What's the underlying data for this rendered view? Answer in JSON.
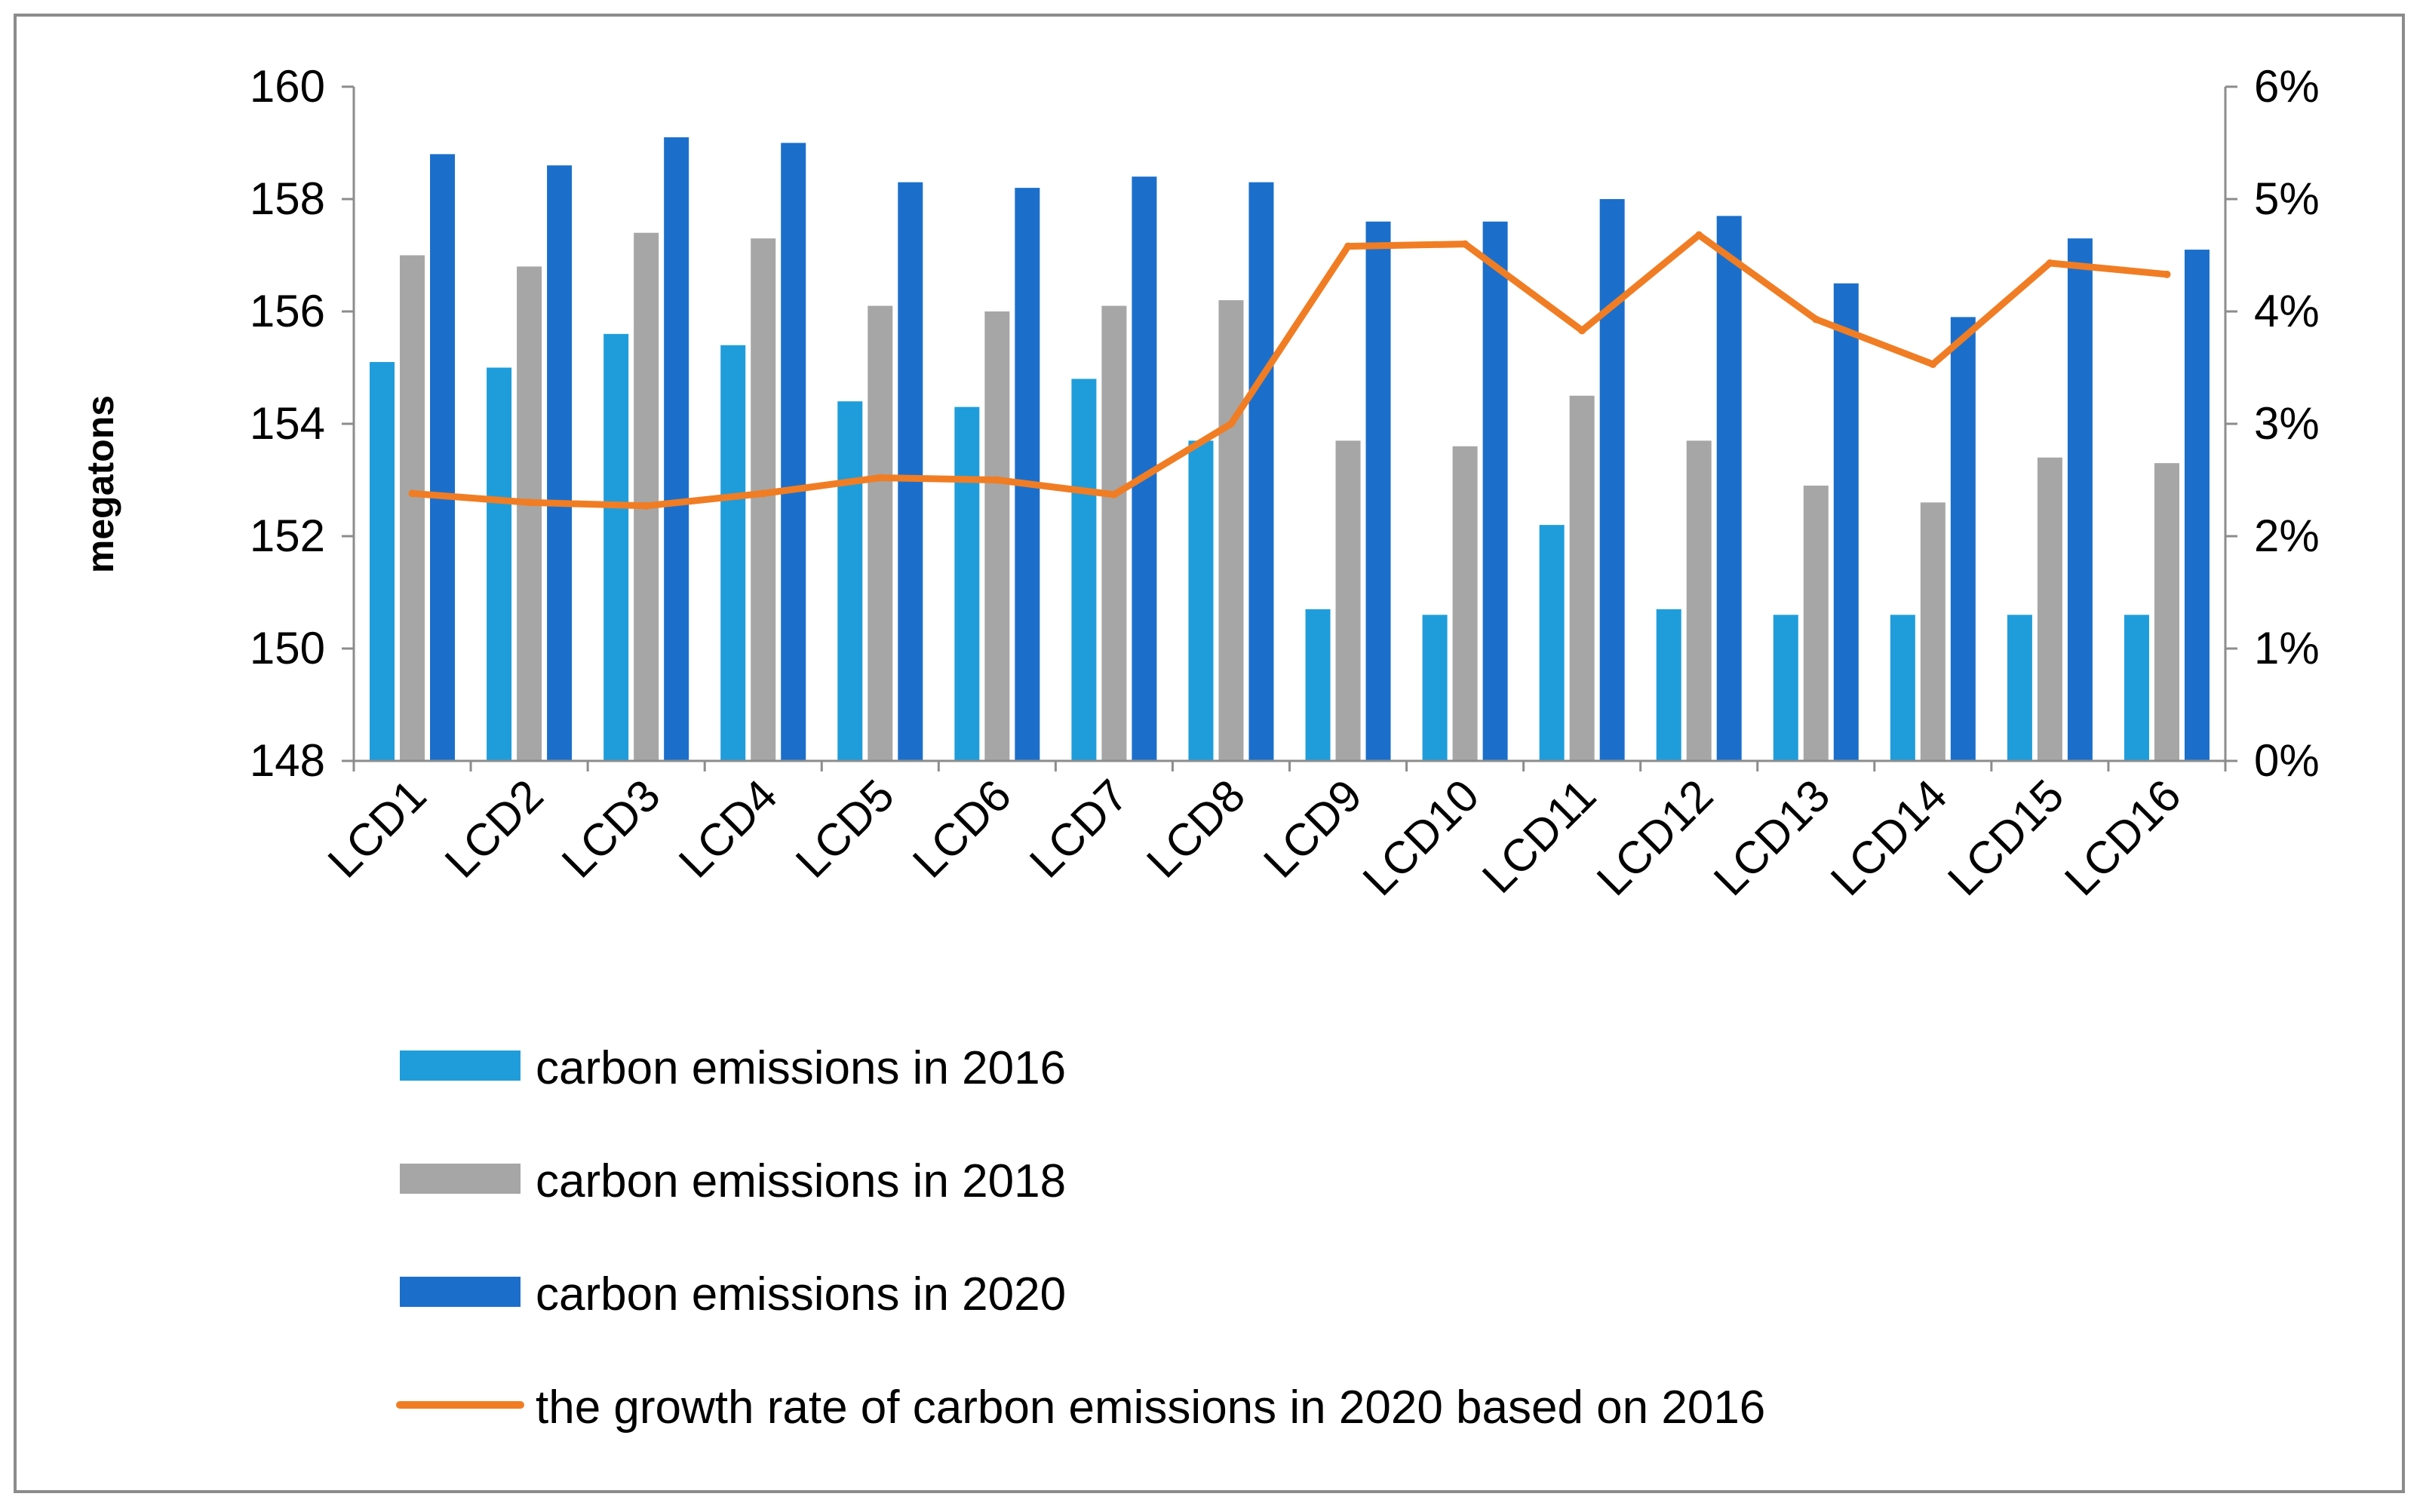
{
  "chart_data": {
    "type": "bar",
    "title": "",
    "xlabel": "",
    "ylabel": "megatons",
    "ylim": [
      148,
      160
    ],
    "yticks": [
      "148",
      "150",
      "152",
      "154",
      "156",
      "158",
      "160"
    ],
    "y2lim": [
      0,
      6
    ],
    "y2ticks": [
      "0%",
      "1%",
      "2%",
      "3%",
      "4%",
      "5%",
      "6%"
    ],
    "categories": [
      "LCD1",
      "LCD2",
      "LCD3",
      "LCD4",
      "LCD5",
      "LCD6",
      "LCD7",
      "LCD8",
      "LCD9",
      "LCD10",
      "LCD11",
      "LCD12",
      "LCD13",
      "LCD14",
      "LCD15",
      "LCD16"
    ],
    "series": [
      {
        "name": "carbon emissions in 2016",
        "kind": "bar",
        "axis": "left",
        "color": "#1f9ddb",
        "values": [
          155.1,
          155.0,
          155.6,
          155.4,
          154.4,
          154.3,
          154.8,
          153.7,
          150.7,
          150.6,
          152.2,
          150.7,
          150.6,
          150.6,
          150.6,
          150.6
        ]
      },
      {
        "name": "carbon emissions in 2018",
        "kind": "bar",
        "axis": "left",
        "color": "#a6a6a6",
        "values": [
          157.0,
          156.8,
          157.4,
          157.3,
          156.1,
          156.0,
          156.1,
          156.2,
          153.7,
          153.6,
          154.5,
          153.7,
          152.9,
          152.6,
          153.4,
          153.3
        ]
      },
      {
        "name": "carbon emissions in 2020",
        "kind": "bar",
        "axis": "left",
        "color": "#1b6fcb",
        "values": [
          158.8,
          158.6,
          159.1,
          159.0,
          158.3,
          158.2,
          158.4,
          158.3,
          157.6,
          157.6,
          158.0,
          157.7,
          156.5,
          155.9,
          157.3,
          157.1
        ]
      },
      {
        "name": "the growth rate of carbon emissions in 2020 based on 2016",
        "kind": "line",
        "axis": "right",
        "unit": "%",
        "color": "#f07d24",
        "values": [
          2.38,
          2.3,
          2.27,
          2.38,
          2.52,
          2.5,
          2.37,
          3.0,
          4.58,
          4.6,
          3.83,
          4.68,
          3.93,
          3.53,
          4.43,
          4.33
        ]
      }
    ],
    "legend_position": "bottom"
  }
}
